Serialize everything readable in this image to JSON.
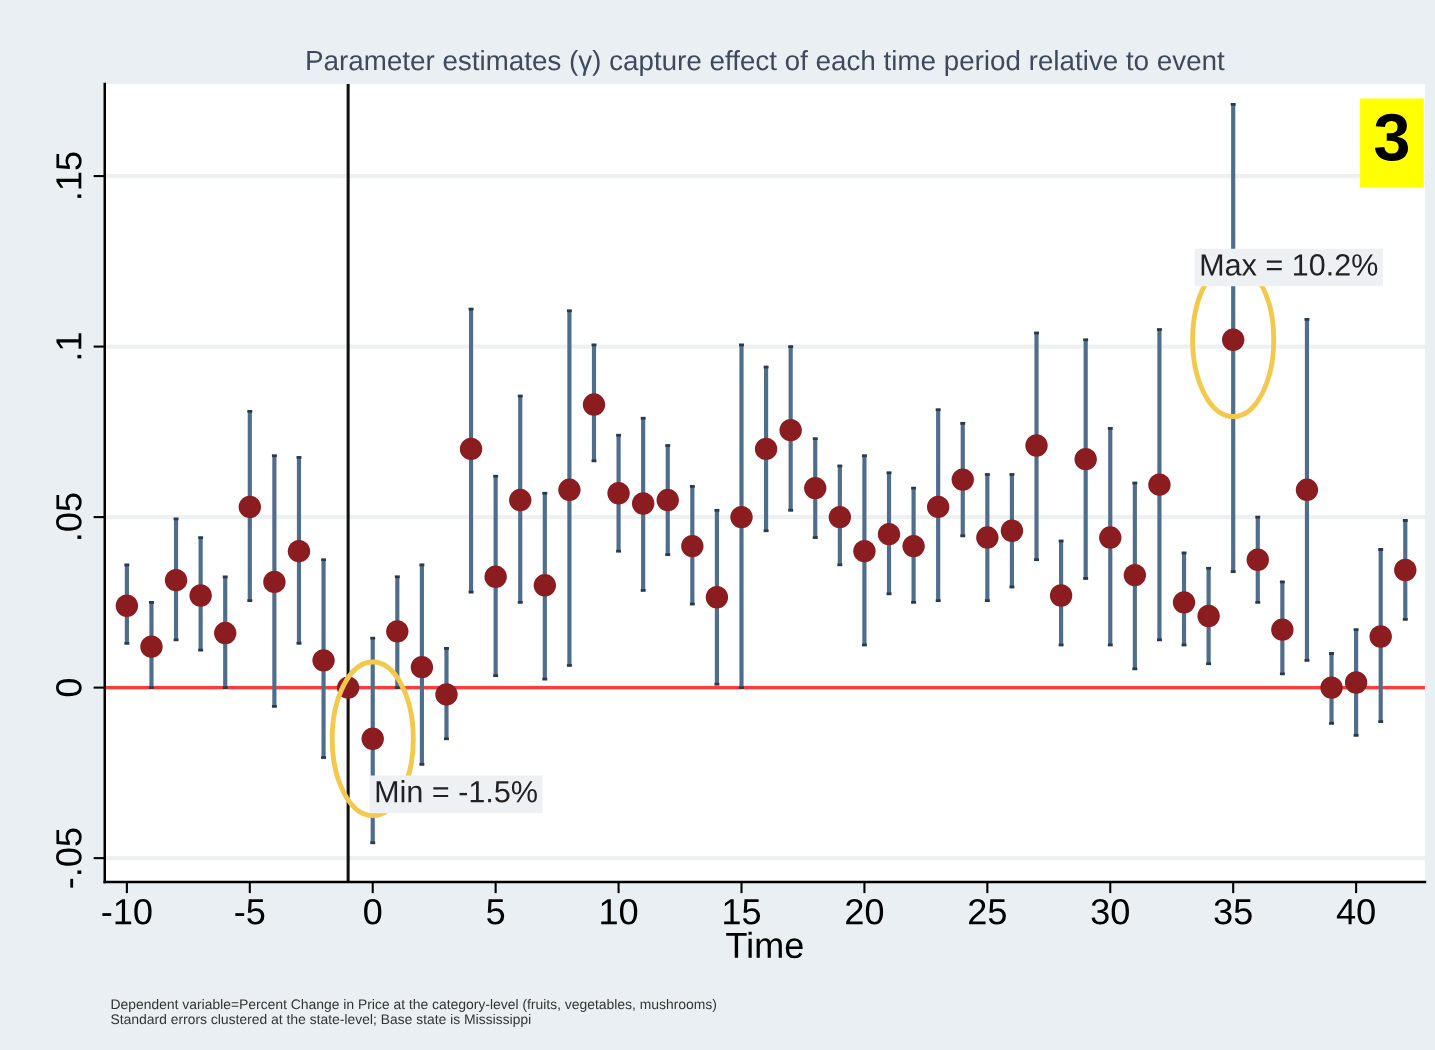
{
  "chart_data": {
    "type": "scatter",
    "title": "Parameter estimates (γ) capture effect of each time period relative to event",
    "xlabel": "Time",
    "x": [
      -10,
      -9,
      -8,
      -7,
      -6,
      -5,
      -4,
      -3,
      -2,
      -1,
      0,
      1,
      2,
      3,
      4,
      5,
      6,
      7,
      8,
      9,
      10,
      11,
      12,
      13,
      14,
      15,
      16,
      17,
      18,
      19,
      20,
      21,
      22,
      23,
      24,
      25,
      26,
      27,
      28,
      29,
      30,
      31,
      32,
      33,
      34,
      35,
      36,
      37,
      38,
      39,
      40,
      41,
      42
    ],
    "series": [
      {
        "color": "#8b1c1f",
        "values": [
          0.024,
          0.012,
          0.0315,
          0.027,
          0.016,
          0.053,
          0.031,
          0.04,
          0.008,
          0.0,
          -0.015,
          0.0165,
          0.006,
          -0.002,
          0.07,
          0.0325,
          0.055,
          0.03,
          0.058,
          0.083,
          0.057,
          0.054,
          0.055,
          0.0415,
          0.0265,
          0.05,
          0.07,
          0.0755,
          0.0585,
          0.05,
          0.04,
          0.045,
          0.0415,
          0.053,
          0.061,
          0.044,
          0.046,
          0.071,
          0.027,
          0.067,
          0.044,
          0.033,
          0.0595,
          0.025,
          0.021,
          0.102,
          0.0375,
          0.017,
          0.058,
          0.0,
          0.0015,
          0.015,
          0.0345
        ],
        "errors": [
          [
            0.013,
            0.036
          ],
          [
            0.0,
            0.025
          ],
          [
            0.014,
            0.0495
          ],
          [
            0.011,
            0.044
          ],
          [
            0.0,
            0.0325
          ],
          [
            0.0255,
            0.081
          ],
          [
            -0.0055,
            0.068
          ],
          [
            0.013,
            0.0675
          ],
          [
            -0.0205,
            0.0375
          ],
          null,
          [
            -0.0455,
            0.0145
          ],
          [
            0.0,
            0.0325
          ],
          [
            -0.0225,
            0.036
          ],
          [
            -0.015,
            0.0115
          ],
          [
            0.028,
            0.111
          ],
          [
            0.0035,
            0.062
          ],
          [
            0.025,
            0.0855
          ],
          [
            0.0025,
            0.057
          ],
          [
            0.0065,
            0.1105
          ],
          [
            0.0665,
            0.1005
          ],
          [
            0.04,
            0.074
          ],
          [
            0.0285,
            0.079
          ],
          [
            0.039,
            0.071
          ],
          [
            0.0245,
            0.059
          ],
          [
            0.001,
            0.052
          ],
          [
            0.0,
            0.1005
          ],
          [
            0.046,
            0.094
          ],
          [
            0.052,
            0.1
          ],
          [
            0.044,
            0.073
          ],
          [
            0.036,
            0.065
          ],
          [
            0.0125,
            0.068
          ],
          [
            0.0275,
            0.063
          ],
          [
            0.025,
            0.0585
          ],
          [
            0.0255,
            0.0815
          ],
          [
            0.0445,
            0.0775
          ],
          [
            0.0255,
            0.0625
          ],
          [
            0.0295,
            0.0625
          ],
          [
            0.0375,
            0.104
          ],
          [
            0.0125,
            0.043
          ],
          [
            0.032,
            0.102
          ],
          [
            0.0125,
            0.076
          ],
          [
            0.0055,
            0.06
          ],
          [
            0.014,
            0.105
          ],
          [
            0.0125,
            0.0395
          ],
          [
            0.007,
            0.035
          ],
          [
            0.034,
            0.171
          ],
          [
            0.025,
            0.05
          ],
          [
            0.004,
            0.031
          ],
          [
            0.008,
            0.108
          ],
          [
            -0.0105,
            0.01
          ],
          [
            -0.014,
            0.017
          ],
          [
            -0.01,
            0.0405
          ],
          [
            0.02,
            0.049
          ]
        ]
      }
    ],
    "marker": "circle",
    "xlim": [
      -10.9,
      42.8
    ],
    "ylim": [
      -0.057,
      0.177
    ],
    "xticks": [
      -10,
      -5,
      0,
      5,
      10,
      15,
      20,
      25,
      30,
      35,
      40
    ],
    "yticks": [
      {
        "value": -0.05,
        "label": "-.05"
      },
      {
        "value": 0,
        "label": "0"
      },
      {
        "value": 0.05,
        "label": ".05"
      },
      {
        "value": 0.1,
        "label": ".1"
      },
      {
        "value": 0.15,
        "label": ".15"
      }
    ],
    "grid": "y",
    "legend": false,
    "ref_lines": [
      {
        "axis": "y",
        "value": 0,
        "color": "#ff3b3b",
        "line_style": "solid"
      },
      {
        "axis": "x",
        "value": -1,
        "color": "#111111",
        "line_style": "solid"
      }
    ],
    "annotations": [
      {
        "text": "Min = -1.5%",
        "x": 0,
        "y": -0.015
      },
      {
        "text": "Max = 10.2%",
        "x": 35,
        "y": 0.102
      },
      "3",
      "Dependent variable=Percent Change in Price at the category-level (fruits, vegetables, mushrooms)\nStandard errors clustered at the state-level; Base state is Mississippi"
    ]
  }
}
